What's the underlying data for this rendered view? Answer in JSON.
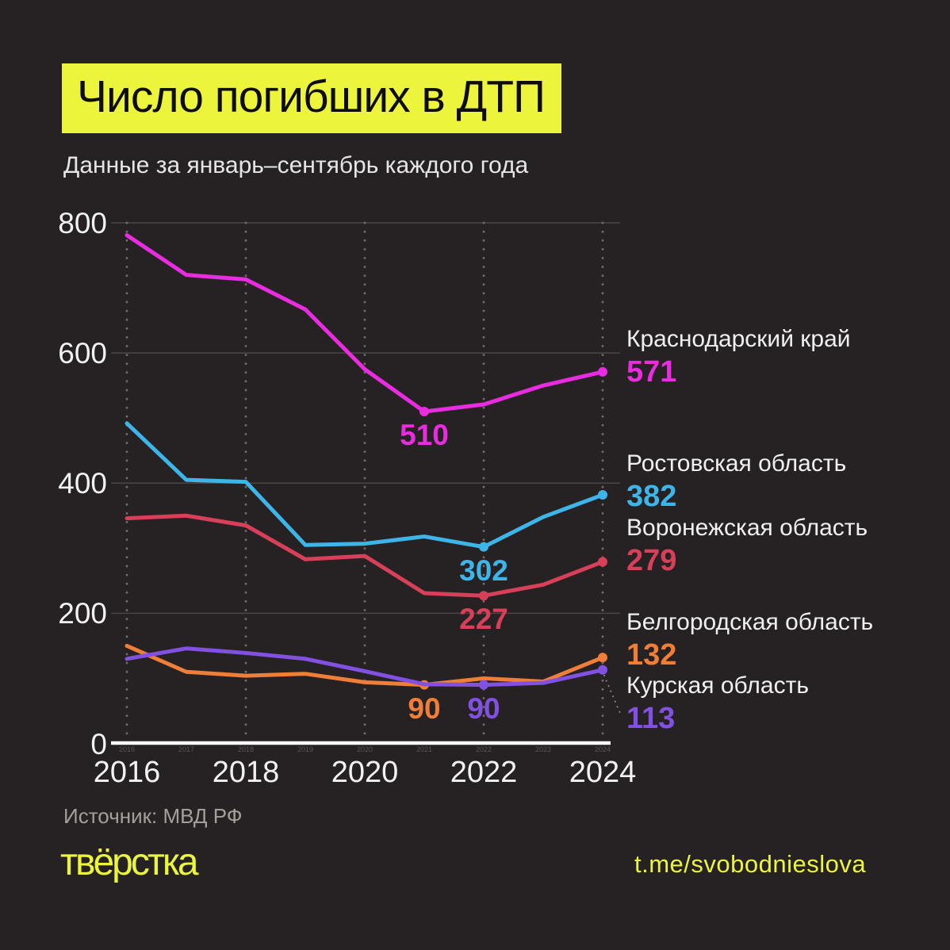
{
  "header": {
    "title": "Число погибших в ДТП",
    "subtitle": "Данные за январь–сентябрь каждого года"
  },
  "footer": {
    "source": "Источник: МВД РФ",
    "logo": "твёрстка",
    "telegram": "t.me/svobodnieslova"
  },
  "colors": {
    "background": "#262223",
    "accent_yellow": "#ecf53c",
    "krasnodar": "#e92ce0",
    "rostov": "#3eb5e9",
    "voronezh": "#d84059",
    "belgorod": "#ee7e38",
    "kursk": "#8351e1",
    "axis_line": "#fbfbfb",
    "grid_horizontal": "#4a4645",
    "grid_vertical_dots": "#716c6a"
  },
  "chart_data": {
    "type": "line",
    "title": "Число погибших в ДТП",
    "subtitle": "Данные за январь–сентябрь каждого года",
    "x": [
      2016,
      2017,
      2018,
      2019,
      2020,
      2021,
      2022,
      2023,
      2024
    ],
    "x_major_labels": [
      "2016",
      "2018",
      "2020",
      "2022",
      "2024"
    ],
    "x_minor_labels": [
      "2016",
      "2017",
      "2018",
      "2019",
      "2020",
      "2021",
      "2022",
      "2023",
      "2024"
    ],
    "y_ticks": [
      0,
      200,
      400,
      600,
      800
    ],
    "ylim": [
      0,
      800
    ],
    "grid": "horizontal solid lines at y ticks, vertical dotted lines at even years",
    "legend_position": "right",
    "series": [
      {
        "name": "Краснодарский край",
        "color": "#e92ce0",
        "values": [
          781,
          720,
          713,
          667,
          575,
          510,
          521,
          550,
          571
        ],
        "end_label": "571",
        "min_label": {
          "year": 2021,
          "text": "510"
        },
        "dot_years": [
          2021,
          2024
        ]
      },
      {
        "name": "Ростовская область",
        "color": "#3eb5e9",
        "values": [
          492,
          405,
          402,
          305,
          307,
          318,
          302,
          348,
          382
        ],
        "end_label": "382",
        "min_label": {
          "year": 2022,
          "text": "302"
        },
        "dot_years": [
          2022,
          2024
        ]
      },
      {
        "name": "Воронежская область",
        "color": "#d84059",
        "values": [
          346,
          350,
          335,
          283,
          288,
          231,
          227,
          244,
          279
        ],
        "end_label": "279",
        "min_label": {
          "year": 2022,
          "text": "227"
        },
        "dot_years": [
          2022,
          2024
        ]
      },
      {
        "name": "Белгородская область",
        "color": "#ee7e38",
        "values": [
          150,
          110,
          104,
          107,
          94,
          90,
          100,
          95,
          132
        ],
        "end_label": "132",
        "min_label": {
          "year": 2021,
          "text": "90"
        },
        "dot_years": [
          2021,
          2024
        ]
      },
      {
        "name": "Курская область",
        "color": "#8351e1",
        "values": [
          130,
          146,
          139,
          130,
          111,
          91,
          90,
          93,
          113
        ],
        "end_label": "113",
        "min_label": {
          "year": 2022,
          "text": "90"
        },
        "dot_years": [
          2022,
          2024
        ]
      }
    ]
  }
}
